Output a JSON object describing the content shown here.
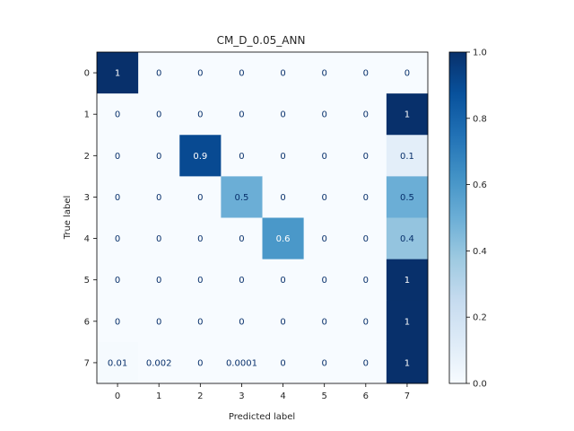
{
  "chart_data": {
    "type": "heatmap",
    "title": "CM_D_0.05_ANN",
    "xlabel": "Predicted label",
    "ylabel": "True label",
    "x_categories": [
      "0",
      "1",
      "2",
      "3",
      "4",
      "5",
      "6",
      "7"
    ],
    "y_categories": [
      "0",
      "1",
      "2",
      "3",
      "4",
      "5",
      "6",
      "7"
    ],
    "values": [
      [
        1,
        0,
        0,
        0,
        0,
        0,
        0,
        0
      ],
      [
        0,
        0,
        0,
        0,
        0,
        0,
        0,
        1
      ],
      [
        0,
        0,
        0.9,
        0,
        0,
        0,
        0,
        0.1
      ],
      [
        0,
        0,
        0,
        0.5,
        0,
        0,
        0,
        0.5
      ],
      [
        0,
        0,
        0,
        0,
        0.6,
        0,
        0,
        0.4
      ],
      [
        0,
        0,
        0,
        0,
        0,
        0,
        0,
        1
      ],
      [
        0,
        0,
        0,
        0,
        0,
        0,
        0,
        1
      ],
      [
        0.01,
        0.002,
        0,
        0.0001,
        0,
        0,
        0,
        1
      ]
    ],
    "cell_labels": [
      [
        "1",
        "0",
        "0",
        "0",
        "0",
        "0",
        "0",
        "0"
      ],
      [
        "0",
        "0",
        "0",
        "0",
        "0",
        "0",
        "0",
        "1"
      ],
      [
        "0",
        "0",
        "0.9",
        "0",
        "0",
        "0",
        "0",
        "0.1"
      ],
      [
        "0",
        "0",
        "0",
        "0.5",
        "0",
        "0",
        "0",
        "0.5"
      ],
      [
        "0",
        "0",
        "0",
        "0",
        "0.6",
        "0",
        "0",
        "0.4"
      ],
      [
        "0",
        "0",
        "0",
        "0",
        "0",
        "0",
        "0",
        "1"
      ],
      [
        "0",
        "0",
        "0",
        "0",
        "0",
        "0",
        "0",
        "1"
      ],
      [
        "0.01",
        "0.002",
        "0",
        "0.0001",
        "0",
        "0",
        "0",
        "1"
      ]
    ],
    "colormap": "Blues",
    "colorbar": {
      "range": [
        0,
        1
      ],
      "ticks": [
        "0.0",
        "0.2",
        "0.4",
        "0.6",
        "0.8",
        "1.0"
      ],
      "tick_values": [
        0,
        0.2,
        0.4,
        0.6,
        0.8,
        1.0
      ]
    },
    "grid": false
  }
}
